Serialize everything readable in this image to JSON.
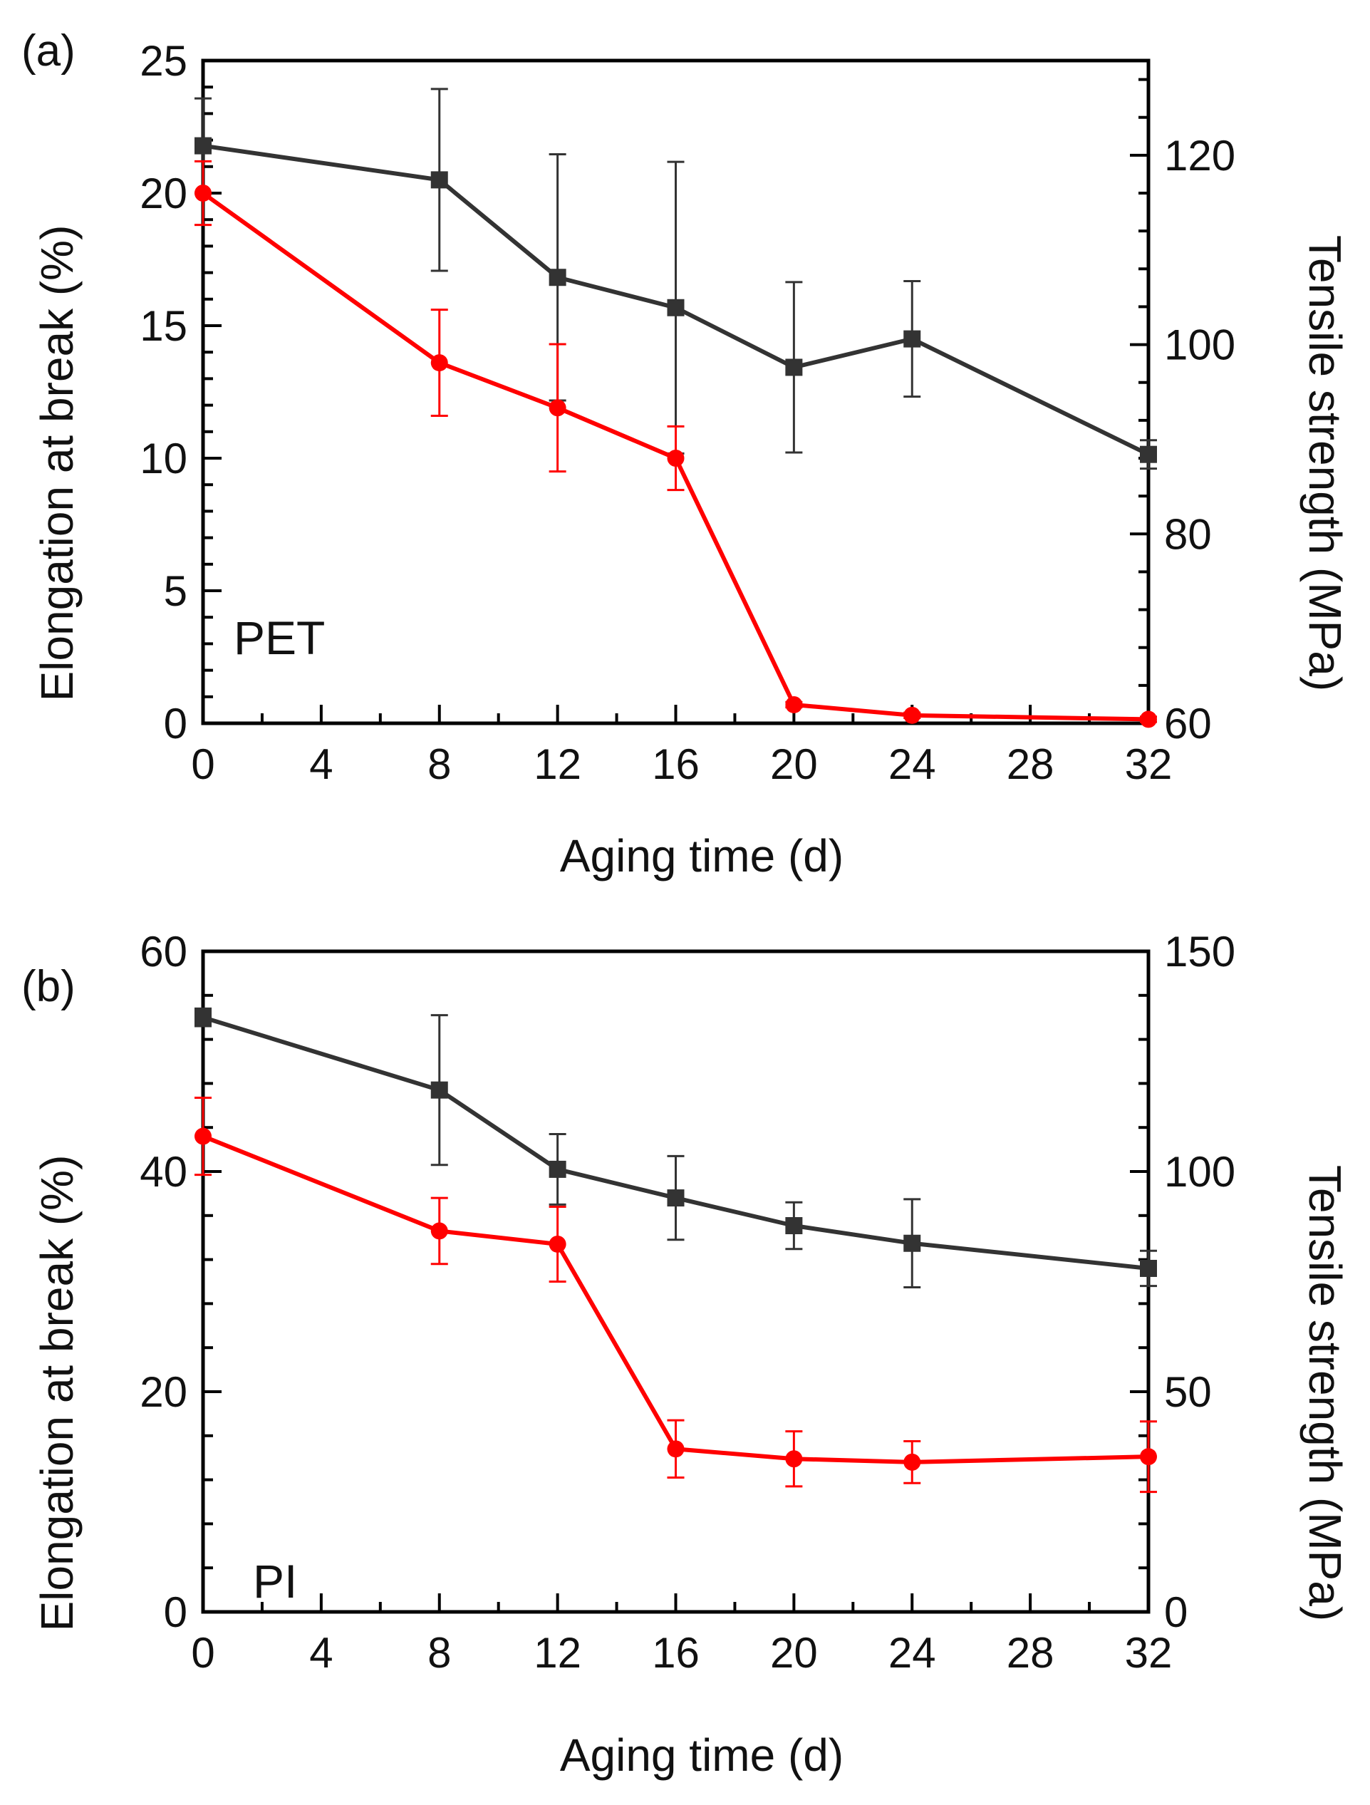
{
  "chart_data": [
    {
      "type": "line",
      "panel_label": "(a)",
      "material": "PET",
      "xlabel": "Aging time (d)",
      "ylabel_left": "Elongation  at break (%)",
      "ylabel_right": "Tensile strength (MPa)",
      "xlim": [
        0,
        32
      ],
      "xticks": [
        0,
        4,
        8,
        12,
        16,
        20,
        24,
        28,
        32
      ],
      "ylim_left": [
        0,
        25
      ],
      "yticks_left": [
        0,
        5,
        10,
        15,
        20,
        25
      ],
      "ylim_right": [
        60,
        130
      ],
      "yticks_right": [
        60,
        80,
        100,
        120
      ],
      "x": [
        0,
        8,
        12,
        16,
        20,
        24,
        32
      ],
      "series": [
        {
          "name": "Tensile strength",
          "axis": "right",
          "color": "#333333",
          "marker": "square",
          "values": [
            121,
            117.4,
            107.1,
            103.9,
            97.6,
            100.6,
            88.4
          ],
          "errors": [
            5,
            9.6,
            13,
            15.4,
            9,
            6.1,
            1.5
          ]
        },
        {
          "name": "Elongation at break",
          "axis": "left",
          "color": "#ff0000",
          "marker": "circle",
          "values": [
            20,
            13.6,
            11.9,
            10,
            0.7,
            0.3,
            0.15
          ],
          "errors": [
            1.2,
            2,
            2.4,
            1.2,
            0.1,
            0.1,
            0.1
          ]
        }
      ]
    },
    {
      "type": "line",
      "panel_label": "(b)",
      "material": "PI",
      "xlabel": "Aging time (d)",
      "ylabel_left": "Elongation  at break (%)",
      "ylabel_right": "Tensile strength (MPa)",
      "xlim": [
        0,
        32
      ],
      "xticks": [
        0,
        4,
        8,
        12,
        16,
        20,
        24,
        28,
        32
      ],
      "ylim_left": [
        0,
        60
      ],
      "yticks_left": [
        0,
        20,
        40,
        60
      ],
      "ylim_right": [
        0,
        150
      ],
      "yticks_right": [
        0,
        50,
        100,
        150
      ],
      "x": [
        0,
        8,
        12,
        16,
        20,
        24,
        32
      ],
      "series": [
        {
          "name": "Tensile strength",
          "axis": "right",
          "color": "#333333",
          "marker": "square",
          "values": [
            135,
            118.5,
            100.5,
            94,
            87.7,
            83.7,
            78
          ],
          "errors": [
            2,
            17,
            8,
            9.5,
            5.3,
            10,
            4
          ]
        },
        {
          "name": "Elongation at break",
          "axis": "left",
          "color": "#ff0000",
          "marker": "circle",
          "values": [
            43.2,
            34.6,
            33.4,
            14.8,
            13.9,
            13.6,
            14.1
          ],
          "errors": [
            3.5,
            3,
            3.4,
            2.6,
            2.5,
            1.9,
            3.2
          ]
        }
      ]
    }
  ]
}
